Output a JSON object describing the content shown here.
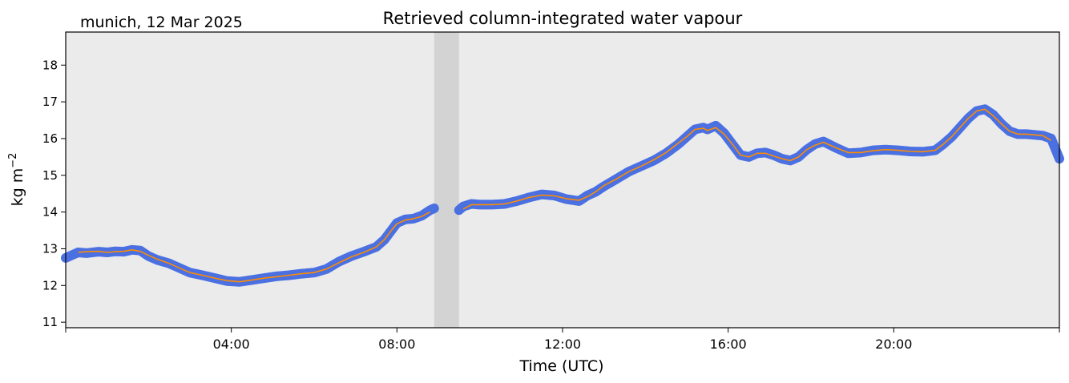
{
  "location_label": "munich, 12 Mar 2025",
  "chart_data": {
    "type": "line",
    "title": "Retrieved column-integrated water vapour",
    "xlabel": "Time (UTC)",
    "ylabel": "kg m",
    "ylabel_exponent": "−2",
    "x_unit": "hours UTC",
    "xlim": [
      0,
      24
    ],
    "ylim": [
      10.85,
      18.9
    ],
    "x_ticks": [
      {
        "value": 4,
        "label": "04:00"
      },
      {
        "value": 8,
        "label": "08:00"
      },
      {
        "value": 12,
        "label": "12:00"
      },
      {
        "value": 16,
        "label": "16:00"
      },
      {
        "value": 20,
        "label": "20:00"
      }
    ],
    "y_ticks": [
      11,
      12,
      13,
      14,
      15,
      16,
      17,
      18
    ],
    "shaded_gap": {
      "start": 8.9,
      "end": 9.5
    },
    "background_color": "#ebebeb",
    "gap_color": "#d3d3d3",
    "series": [
      {
        "kind": "raw",
        "color": "#4169e1",
        "x": [
          0.0,
          0.2,
          0.3,
          0.5,
          0.8,
          1.0,
          1.2,
          1.4,
          1.6,
          1.8,
          2.0,
          2.2,
          2.5,
          2.8,
          3.0,
          3.3,
          3.6,
          3.9,
          4.2,
          4.5,
          4.8,
          5.1,
          5.4,
          5.7,
          6.0,
          6.3,
          6.6,
          6.9,
          7.2,
          7.5,
          7.7,
          7.9,
          8.0,
          8.2,
          8.4,
          8.6,
          8.8,
          8.9,
          9.5,
          9.6,
          9.8,
          10.0,
          10.3,
          10.6,
          10.9,
          11.2,
          11.5,
          11.8,
          12.1,
          12.4,
          12.6,
          12.8,
          13.0,
          13.3,
          13.6,
          13.9,
          14.2,
          14.5,
          14.8,
          15.0,
          15.2,
          15.4,
          15.5,
          15.7,
          15.9,
          16.1,
          16.3,
          16.5,
          16.7,
          16.9,
          17.1,
          17.3,
          17.5,
          17.7,
          17.9,
          18.1,
          18.3,
          18.6,
          18.9,
          19.2,
          19.5,
          19.8,
          20.1,
          20.4,
          20.7,
          21.0,
          21.2,
          21.4,
          21.6,
          21.8,
          22.0,
          22.2,
          22.4,
          22.6,
          22.8,
          23.0,
          23.2,
          23.4,
          23.6,
          23.8,
          24.0
        ],
        "y": [
          12.75,
          12.85,
          12.9,
          12.88,
          12.92,
          12.9,
          12.93,
          12.92,
          12.97,
          12.95,
          12.8,
          12.7,
          12.6,
          12.45,
          12.35,
          12.28,
          12.2,
          12.12,
          12.1,
          12.15,
          12.2,
          12.25,
          12.28,
          12.32,
          12.35,
          12.45,
          12.65,
          12.8,
          12.92,
          13.05,
          13.25,
          13.55,
          13.7,
          13.8,
          13.82,
          13.9,
          14.05,
          14.1,
          14.05,
          14.15,
          14.22,
          14.2,
          14.2,
          14.22,
          14.3,
          14.4,
          14.48,
          14.45,
          14.35,
          14.3,
          14.45,
          14.55,
          14.7,
          14.9,
          15.1,
          15.25,
          15.4,
          15.6,
          15.85,
          16.05,
          16.25,
          16.3,
          16.25,
          16.35,
          16.15,
          15.85,
          15.55,
          15.5,
          15.6,
          15.62,
          15.55,
          15.45,
          15.4,
          15.5,
          15.7,
          15.85,
          15.92,
          15.75,
          15.6,
          15.62,
          15.68,
          15.7,
          15.68,
          15.65,
          15.64,
          15.68,
          15.85,
          16.05,
          16.3,
          16.55,
          16.75,
          16.8,
          16.65,
          16.4,
          16.2,
          16.12,
          16.12,
          16.1,
          16.08,
          16.0,
          15.45
        ]
      },
      {
        "kind": "smoothed",
        "color": "#ff8c00",
        "x": [
          0.3,
          0.5,
          0.8,
          1.0,
          1.2,
          1.4,
          1.6,
          1.8,
          2.0,
          2.2,
          2.5,
          2.8,
          3.0,
          3.3,
          3.6,
          3.9,
          4.2,
          4.5,
          4.8,
          5.1,
          5.4,
          5.7,
          6.0,
          6.3,
          6.6,
          6.9,
          7.2,
          7.5,
          7.7,
          7.9,
          8.0,
          8.2,
          8.4,
          8.6,
          8.8,
          9.6,
          9.8,
          10.0,
          10.3,
          10.6,
          10.9,
          11.2,
          11.5,
          11.8,
          12.1,
          12.4,
          12.6,
          12.8,
          13.0,
          13.3,
          13.6,
          13.9,
          14.2,
          14.5,
          14.8,
          15.0,
          15.2,
          15.4,
          15.5,
          15.7,
          15.9,
          16.1,
          16.3,
          16.5,
          16.7,
          16.9,
          17.1,
          17.3,
          17.5,
          17.7,
          17.9,
          18.1,
          18.3,
          18.6,
          18.9,
          19.2,
          19.5,
          19.8,
          20.1,
          20.4,
          20.7,
          21.0,
          21.2,
          21.4,
          21.6,
          21.8,
          22.0,
          22.2,
          22.4,
          22.6,
          22.8,
          23.0,
          23.2,
          23.4,
          23.6,
          23.8
        ],
        "y": [
          12.9,
          12.92,
          12.93,
          12.9,
          12.92,
          12.93,
          12.97,
          12.93,
          12.82,
          12.72,
          12.6,
          12.45,
          12.35,
          12.28,
          12.2,
          12.13,
          12.1,
          12.15,
          12.2,
          12.24,
          12.28,
          12.32,
          12.35,
          12.45,
          12.62,
          12.78,
          12.9,
          13.05,
          13.25,
          13.55,
          13.68,
          13.78,
          13.82,
          13.88,
          14.0,
          14.08,
          14.2,
          14.2,
          14.2,
          14.22,
          14.3,
          14.4,
          14.46,
          14.44,
          14.36,
          14.32,
          14.42,
          14.55,
          14.72,
          14.9,
          15.1,
          15.25,
          15.42,
          15.62,
          15.88,
          16.05,
          16.25,
          16.28,
          16.22,
          16.3,
          16.12,
          15.85,
          15.55,
          15.5,
          15.6,
          15.6,
          15.52,
          15.45,
          15.4,
          15.5,
          15.7,
          15.82,
          15.9,
          15.75,
          15.62,
          15.62,
          15.67,
          15.7,
          15.68,
          15.65,
          15.64,
          15.68,
          15.85,
          16.05,
          16.3,
          16.55,
          16.75,
          16.8,
          16.62,
          16.4,
          16.2,
          16.12,
          16.12,
          16.1,
          16.08,
          15.95
        ]
      }
    ]
  }
}
